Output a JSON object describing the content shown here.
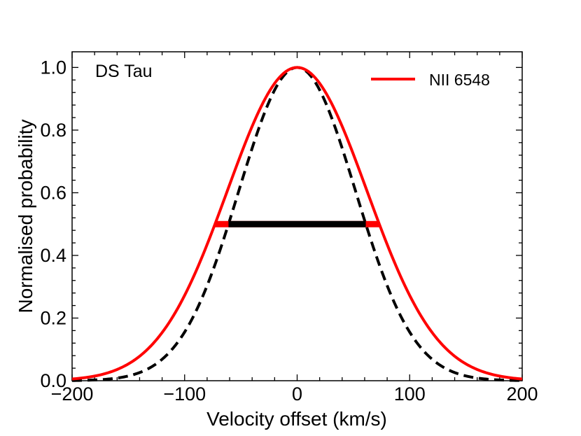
{
  "chart_data": {
    "type": "line",
    "annotation": "DS Tau",
    "xlabel": "Velocity offset (km/s)",
    "ylabel": "Normalised probability",
    "xlim": [
      -200,
      200
    ],
    "ylim": [
      0.0,
      1.05
    ],
    "xticks": [
      -200,
      -100,
      0,
      100,
      200
    ],
    "xtick_labels": [
      "−200",
      "−100",
      "0",
      "100",
      "200"
    ],
    "yticks": [
      0.0,
      0.2,
      0.4,
      0.6,
      0.8,
      1.0
    ],
    "ytick_labels": [
      "0.0",
      "0.2",
      "0.4",
      "0.6",
      "0.8",
      "1.0"
    ],
    "grid": false,
    "legend_position": "top-right",
    "series": [
      {
        "name": "NII 6548",
        "color": "#ff0000",
        "style": "solid",
        "in_legend": true,
        "shape": "gaussian",
        "center": 0,
        "fwhm": 146,
        "peak": 1.0,
        "half_max_bar": [
          -73,
          73
        ]
      },
      {
        "color": "#000000",
        "style": "dashed",
        "in_legend": false,
        "shape": "gaussian",
        "center": 0,
        "fwhm": 122,
        "peak": 1.0,
        "half_max_bar": [
          -61,
          61
        ]
      }
    ]
  }
}
